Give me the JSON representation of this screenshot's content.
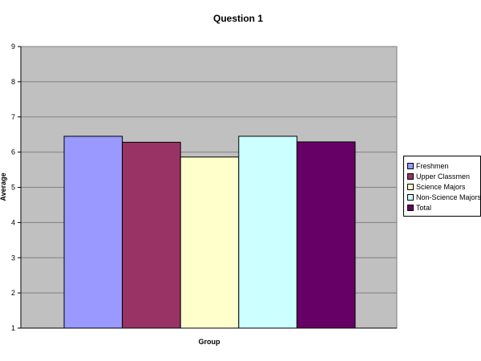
{
  "chart_data": {
    "type": "bar",
    "title": "Question 1",
    "xlabel": "Group",
    "ylabel": "Average",
    "ylim": [
      1,
      9
    ],
    "yticks": [
      "1",
      "2",
      "3",
      "4",
      "5",
      "6",
      "7",
      "8",
      "9"
    ],
    "grid": true,
    "legend_position": "right",
    "plot_background": "#c0c0c0",
    "series": [
      {
        "name": "Freshmen",
        "value": 6.45,
        "color": "#9999ff"
      },
      {
        "name": "Upper Classmen",
        "value": 6.28,
        "color": "#993366"
      },
      {
        "name": "Science Majors",
        "value": 5.86,
        "color": "#ffffcc"
      },
      {
        "name": "Non-Science Majors",
        "value": 6.45,
        "color": "#ccffff"
      },
      {
        "name": "Total",
        "value": 6.29,
        "color": "#660066"
      }
    ]
  }
}
